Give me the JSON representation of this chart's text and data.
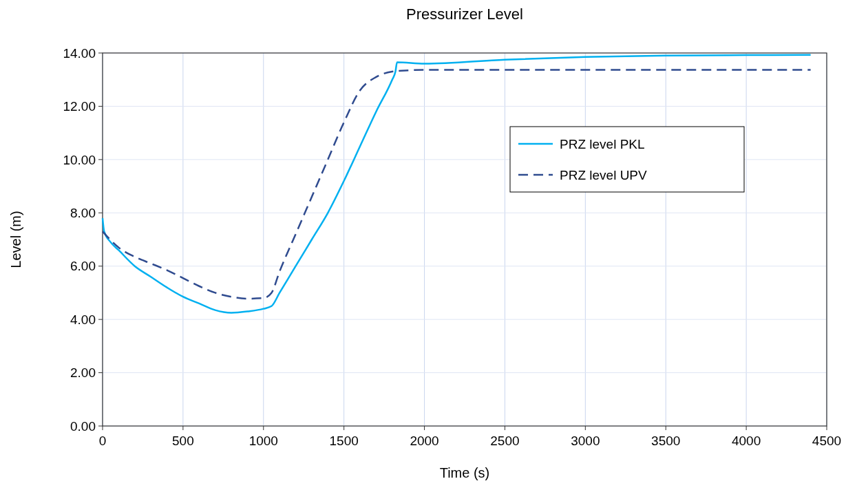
{
  "chart_data": {
    "type": "line",
    "title": "Pressurizer Level",
    "xlabel": "Time (s)",
    "ylabel": "Level (m)",
    "xlim": [
      0,
      4500
    ],
    "xticks": [
      0,
      500,
      1000,
      1500,
      2000,
      2500,
      3000,
      3500,
      4000,
      4500
    ],
    "ylim": [
      0,
      14
    ],
    "yticks": [
      {
        "value": 0,
        "label": "0.00"
      },
      {
        "value": 2,
        "label": "2.00"
      },
      {
        "value": 4,
        "label": "4.00"
      },
      {
        "value": 6,
        "label": "6.00"
      },
      {
        "value": 8,
        "label": "8.00"
      },
      {
        "value": 10,
        "label": "10.00"
      },
      {
        "value": 12,
        "label": "12.00"
      },
      {
        "value": 14,
        "label": "14.00"
      }
    ],
    "grid": true,
    "legend": "right",
    "marker": "none",
    "series": [
      {
        "name": "PRZ level PKL",
        "color": "#00b0f0",
        "line_style": "solid",
        "x": [
          0,
          10,
          50,
          100,
          200,
          300,
          400,
          500,
          600,
          700,
          800,
          900,
          1000,
          1050,
          1100,
          1200,
          1300,
          1400,
          1500,
          1600,
          1700,
          1800,
          1820,
          1830,
          2000,
          2500,
          3000,
          3500,
          4000,
          4400
        ],
        "values": [
          7.8,
          7.3,
          6.9,
          6.6,
          6.0,
          5.6,
          5.2,
          4.85,
          4.6,
          4.35,
          4.25,
          4.3,
          4.4,
          4.5,
          5.0,
          6.0,
          7.0,
          8.0,
          9.2,
          10.5,
          11.8,
          13.0,
          13.3,
          13.65,
          13.6,
          13.75,
          13.85,
          13.9,
          13.92,
          13.93
        ]
      },
      {
        "name": "PRZ level UPV",
        "color": "#2f4b8f",
        "line_style": "dashed",
        "x": [
          0,
          100,
          200,
          300,
          400,
          500,
          600,
          700,
          800,
          900,
          1000,
          1050,
          1100,
          1200,
          1300,
          1400,
          1500,
          1600,
          1700,
          1800,
          1900,
          2000,
          4400
        ],
        "values": [
          7.3,
          6.7,
          6.35,
          6.1,
          5.85,
          5.55,
          5.25,
          5.0,
          4.85,
          4.78,
          4.8,
          5.0,
          5.8,
          7.2,
          8.6,
          10.0,
          11.4,
          12.6,
          13.1,
          13.3,
          13.35,
          13.37,
          13.37
        ]
      }
    ]
  }
}
